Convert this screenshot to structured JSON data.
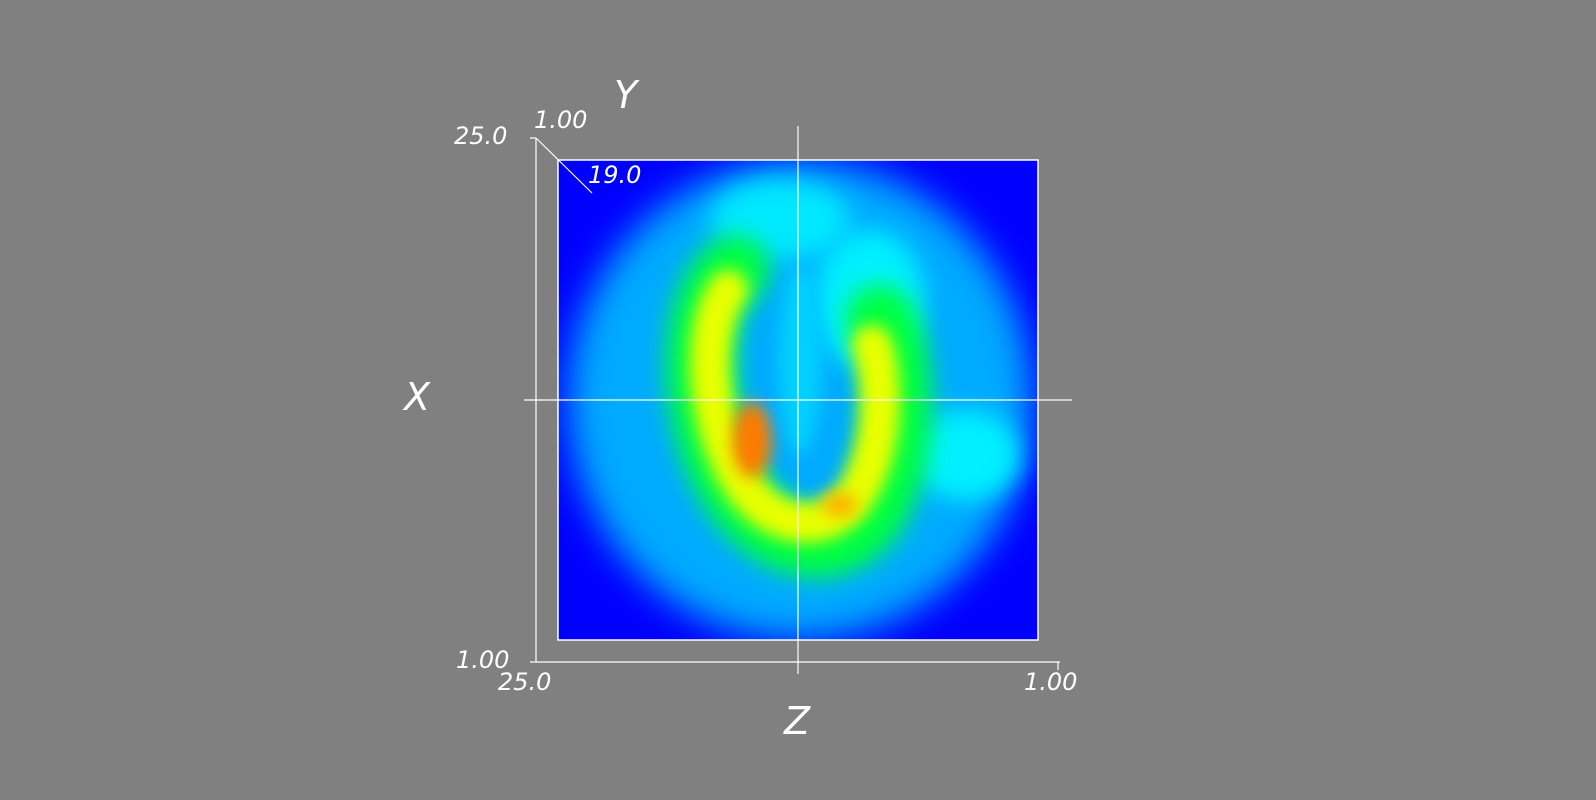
{
  "axes": {
    "x": {
      "title": "X"
    },
    "y": {
      "title": "Y",
      "tick_min": "19.0",
      "tick_max": "1.00"
    },
    "z": {
      "title": "Z",
      "tick_left": "25.0",
      "tick_right": "1.00"
    },
    "vertical_ticks": {
      "top": "25.0",
      "bottom": "1.00"
    }
  },
  "colors": {
    "background": "#808080",
    "axis_lines": "#ffffff",
    "colormap": [
      "#0000ff",
      "#00a8ff",
      "#00ffff",
      "#00ff00",
      "#ffff00",
      "#ff8000",
      "#ff0000"
    ]
  }
}
